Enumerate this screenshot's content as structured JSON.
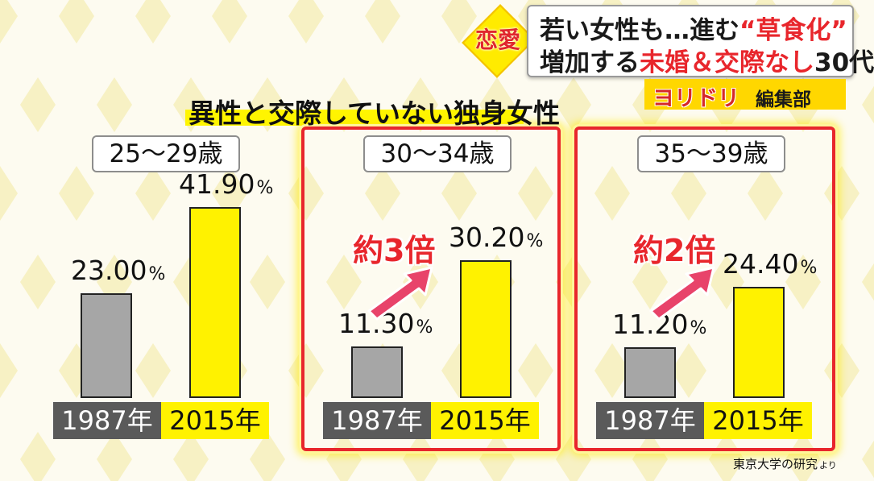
{
  "caption": {
    "tag": "恋愛",
    "line1_pre": "若い女性も…進む",
    "line1_highlight": "“草食化”",
    "line2_pre": "増加する",
    "line2_highlight": "未婚＆交際なし",
    "line2_post": "30代"
  },
  "corner": {
    "katakana": "ヨリドリ",
    "kanji": "編集部"
  },
  "chart_data": {
    "type": "bar",
    "title": "異性と交際していない独身女性",
    "unit": "%",
    "categories": [
      "1987年",
      "2015年"
    ],
    "ylim": [
      0,
      45
    ],
    "groups": [
      {
        "label": "25〜29歳",
        "values": [
          23.0,
          41.9
        ],
        "value_text": [
          "23.00",
          "41.90"
        ],
        "note": ""
      },
      {
        "label": "30〜34歳",
        "values": [
          11.3,
          30.2
        ],
        "value_text": [
          "11.30",
          "30.20"
        ],
        "note": "約3倍"
      },
      {
        "label": "35〜39歳",
        "values": [
          11.2,
          24.4
        ],
        "value_text": [
          "11.20",
          "24.40"
        ],
        "note": "約2倍"
      }
    ],
    "bar_colors": [
      "#a6a6a6",
      "#fff200"
    ],
    "highlight_color": "#e8262c",
    "source": "東京大学の研究",
    "source_suffix": "より"
  }
}
